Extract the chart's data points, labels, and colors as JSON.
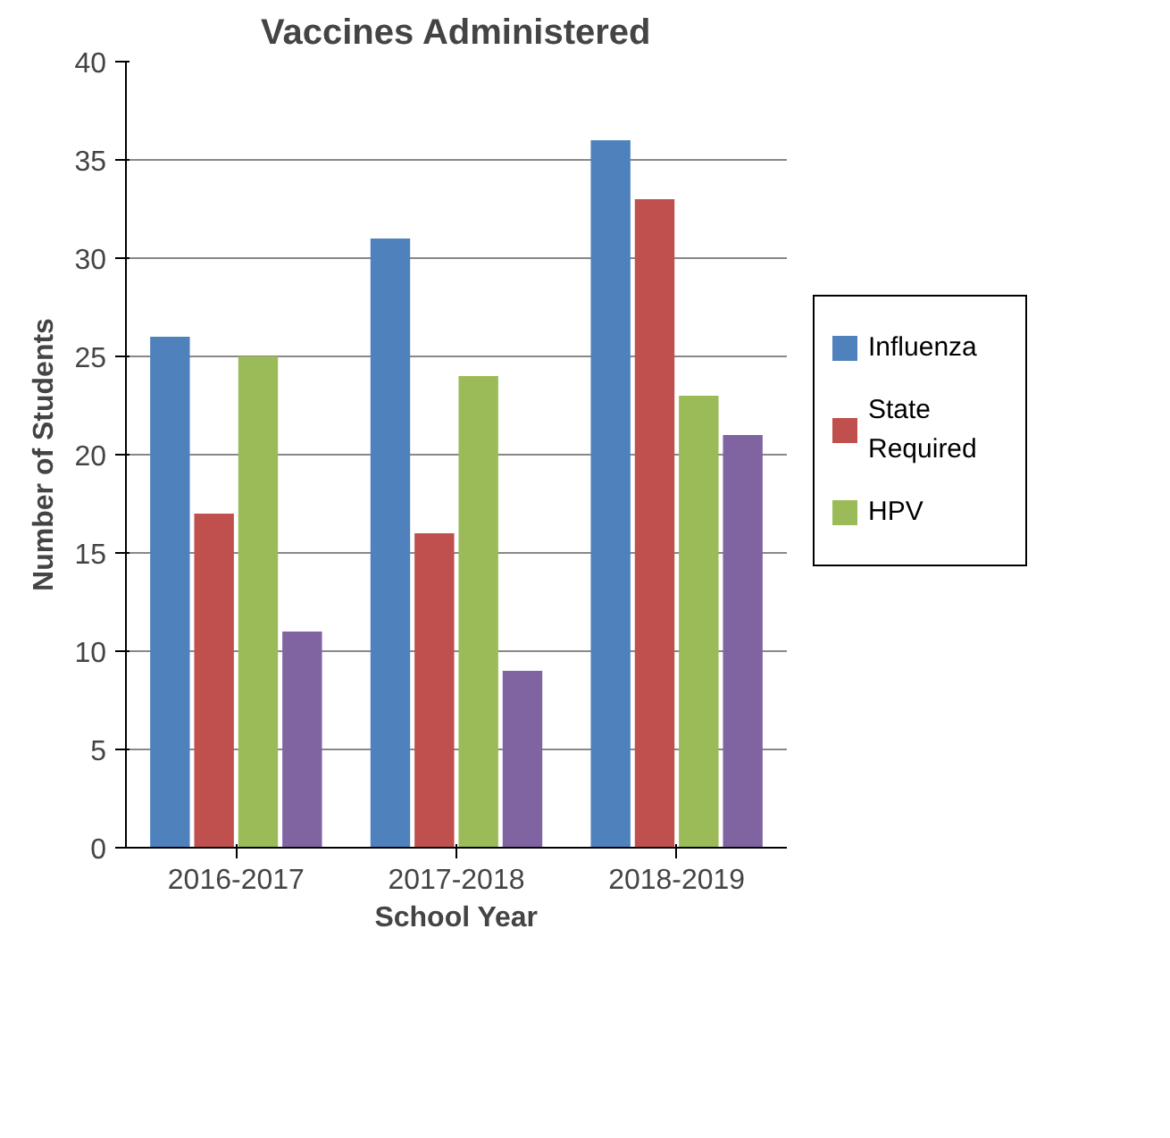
{
  "chart_data": {
    "type": "bar",
    "title": "Vaccines Administered",
    "xlabel": "School Year",
    "ylabel": "Number of Students",
    "categories": [
      "2016-2017",
      "2017-2018",
      "2018-2019"
    ],
    "series": [
      {
        "name": "Influenza",
        "color": "#4f81bd",
        "values": [
          26,
          31,
          36
        ]
      },
      {
        "name": "State Required",
        "color": "#c0504d",
        "values": [
          17,
          16,
          33
        ]
      },
      {
        "name": "HPV",
        "color": "#9bbb59",
        "values": [
          25,
          24,
          23
        ]
      },
      {
        "color": "#8064a2",
        "values": [
          11,
          9,
          21
        ]
      }
    ],
    "ylim": [
      0,
      40
    ],
    "yticks": [
      0,
      5,
      10,
      15,
      20,
      25,
      30,
      35,
      40
    ],
    "grid": "y",
    "legend": "right"
  }
}
